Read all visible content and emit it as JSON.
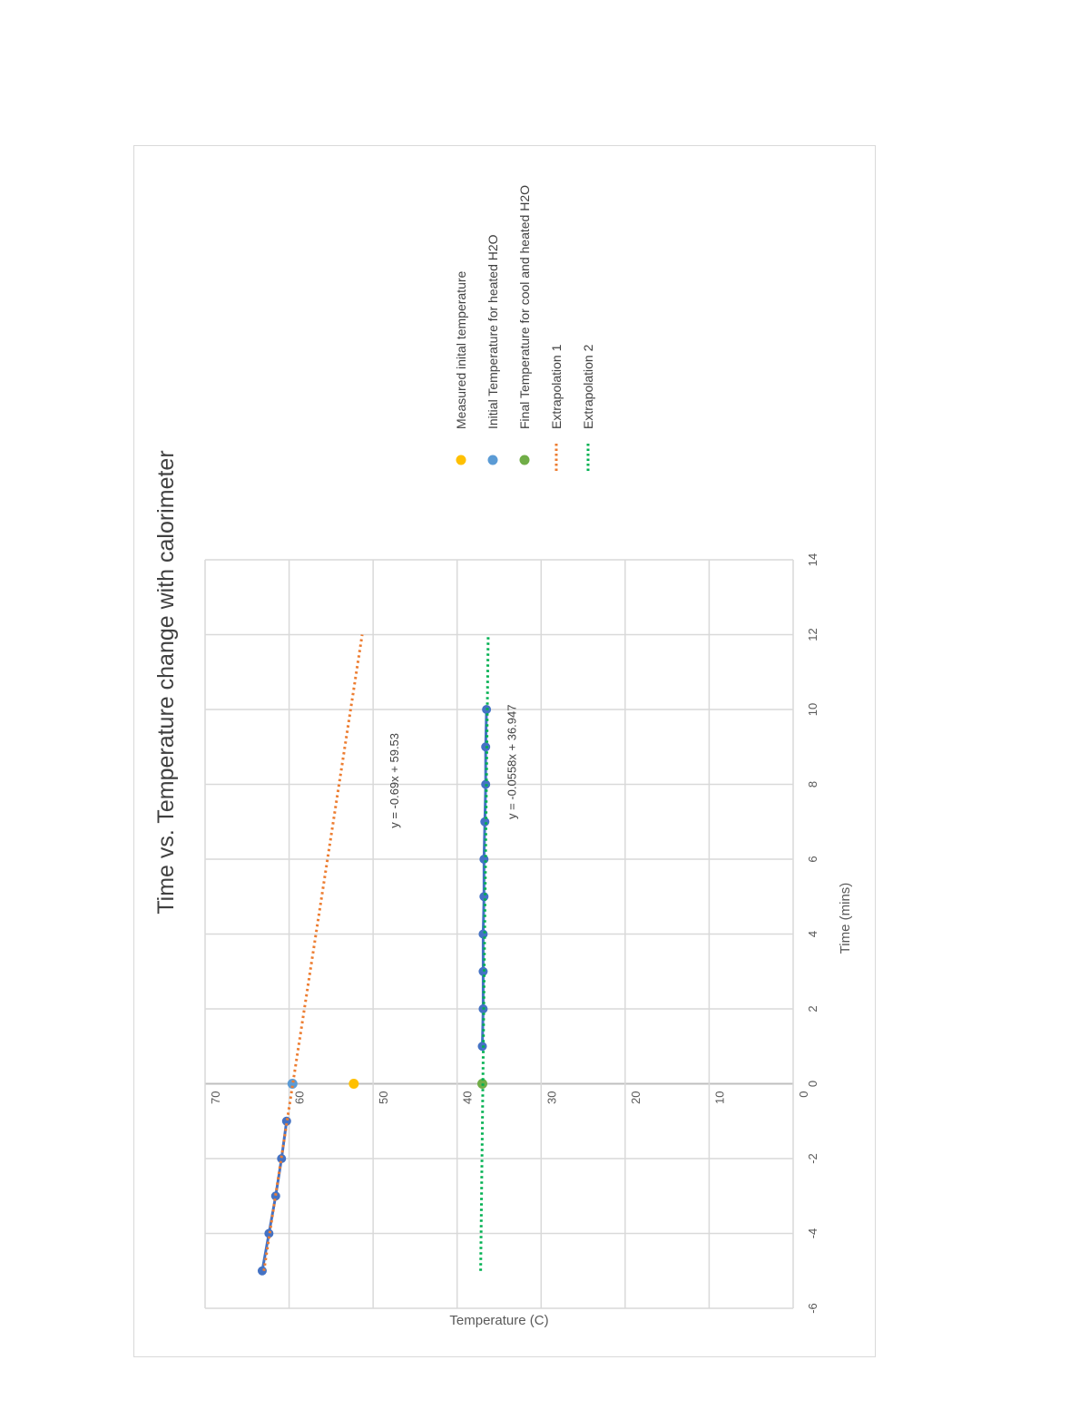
{
  "chart_data": {
    "type": "scatter",
    "title": "Time vs. Temperature change with calorimeter",
    "xlabel": "Time (mins)",
    "ylabel": "Temperature (C)",
    "xlim": [
      -6,
      14
    ],
    "ylim": [
      0,
      70
    ],
    "x_ticks": [
      "-6",
      "-4",
      "-2",
      "0",
      "2",
      "4",
      "6",
      "8",
      "10",
      "12",
      "14"
    ],
    "y_ticks": [
      "0",
      "10",
      "20",
      "30",
      "40",
      "50",
      "60",
      "70"
    ],
    "grid": true,
    "orientation": "rotated-90-counterclockwise",
    "legend_position": "right",
    "series": [
      {
        "name": "",
        "kind": "line-markers",
        "color": "#4472c4",
        "points": [
          [
            -5,
            63.2
          ],
          [
            -4,
            62.4
          ],
          [
            -3,
            61.6
          ],
          [
            -2,
            60.9
          ],
          [
            -1,
            60.3
          ]
        ]
      },
      {
        "name": "",
        "kind": "line-markers",
        "color": "#4472c4",
        "points": [
          [
            1,
            37.0
          ],
          [
            2,
            36.9
          ],
          [
            3,
            36.9
          ],
          [
            4,
            36.9
          ],
          [
            5,
            36.8
          ],
          [
            6,
            36.8
          ],
          [
            7,
            36.7
          ],
          [
            8,
            36.6
          ],
          [
            9,
            36.6
          ],
          [
            10,
            36.5
          ]
        ]
      },
      {
        "name": "Measured inital temperature",
        "kind": "marker",
        "color": "#ffc000",
        "points": [
          [
            0,
            52.3
          ]
        ]
      },
      {
        "name": "Initial Temperature for heated H2O",
        "kind": "marker",
        "color": "#5b9bd5",
        "points": [
          [
            0,
            59.6
          ]
        ]
      },
      {
        "name": "Final Temperature for cool and heated H2O",
        "kind": "marker",
        "color": "#70ad47",
        "points": [
          [
            0,
            37.0
          ]
        ]
      },
      {
        "name": "Extrapolation 1",
        "kind": "dotted-line",
        "color": "#ed7d31",
        "points": [
          [
            -5,
            63.0
          ],
          [
            12,
            51.3
          ]
        ]
      },
      {
        "name": "Extrapolation 2",
        "kind": "dotted-line",
        "color": "#00b050",
        "points": [
          [
            -5,
            37.2
          ],
          [
            12,
            36.3
          ]
        ]
      }
    ],
    "annotations": [
      {
        "text": "y = -0.69x + 59.53",
        "x": 8.1,
        "y": 47.0
      },
      {
        "text": "y = -0.0558x + 36.947",
        "x": 8.6,
        "y": 33.0
      }
    ]
  }
}
